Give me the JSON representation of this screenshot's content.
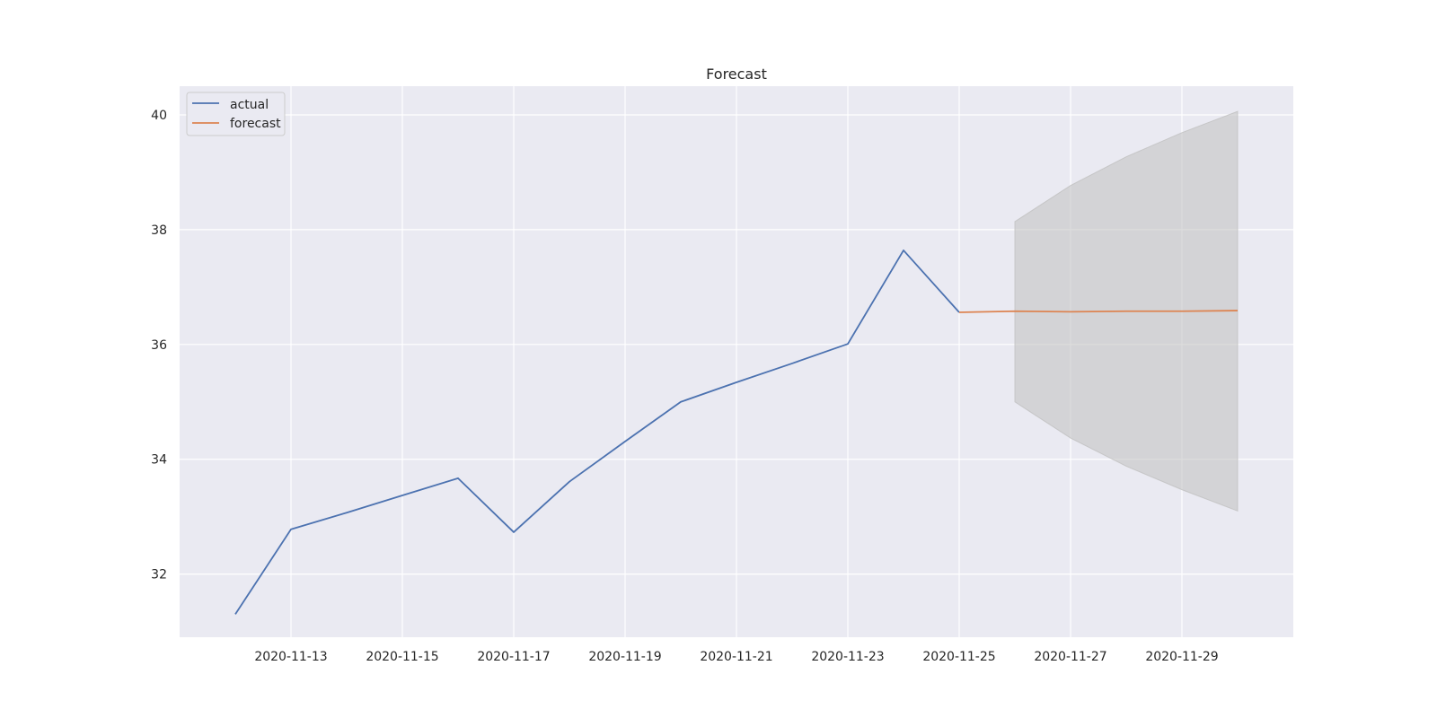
{
  "chart_data": {
    "type": "line",
    "title": "Forecast",
    "xlabel": "",
    "ylabel": "",
    "x_type": "date",
    "xlim": [
      "2020-11-11",
      "2020-12-01"
    ],
    "ylim": [
      30.9,
      40.5
    ],
    "x_ticks": [
      "2020-11-13",
      "2020-11-15",
      "2020-11-17",
      "2020-11-19",
      "2020-11-21",
      "2020-11-23",
      "2020-11-25",
      "2020-11-27",
      "2020-11-29"
    ],
    "y_ticks": [
      "32",
      "34",
      "36",
      "38",
      "40"
    ],
    "grid": true,
    "legend_position": "top-left",
    "series": [
      {
        "name": "actual",
        "color": "#4c72b0",
        "points": [
          {
            "x": "2020-11-12",
            "y": 31.3
          },
          {
            "x": "2020-11-13",
            "y": 32.78
          },
          {
            "x": "2020-11-14",
            "y": 33.07
          },
          {
            "x": "2020-11-15",
            "y": 33.37
          },
          {
            "x": "2020-11-16",
            "y": 33.67
          },
          {
            "x": "2020-11-17",
            "y": 32.73
          },
          {
            "x": "2020-11-18",
            "y": 33.61
          },
          {
            "x": "2020-11-19",
            "y": 34.31
          },
          {
            "x": "2020-11-20",
            "y": 35.0
          },
          {
            "x": "2020-11-21",
            "y": 35.34
          },
          {
            "x": "2020-11-22",
            "y": 35.67
          },
          {
            "x": "2020-11-23",
            "y": 36.01
          },
          {
            "x": "2020-11-24",
            "y": 37.64
          },
          {
            "x": "2020-11-25",
            "y": 36.56
          }
        ]
      },
      {
        "name": "forecast",
        "color": "#dd8452",
        "points": [
          {
            "x": "2020-11-25",
            "y": 36.56
          },
          {
            "x": "2020-11-26",
            "y": 36.58
          },
          {
            "x": "2020-11-27",
            "y": 36.57
          },
          {
            "x": "2020-11-28",
            "y": 36.58
          },
          {
            "x": "2020-11-29",
            "y": 36.58
          },
          {
            "x": "2020-11-30",
            "y": 36.59
          }
        ]
      }
    ],
    "confidence_band": {
      "color": "#c0c0c0",
      "points": [
        {
          "x": "2020-11-26",
          "lower": 35.0,
          "upper": 38.14
        },
        {
          "x": "2020-11-27",
          "lower": 34.37,
          "upper": 38.77
        },
        {
          "x": "2020-11-28",
          "lower": 33.88,
          "upper": 39.27
        },
        {
          "x": "2020-11-29",
          "lower": 33.47,
          "upper": 39.69
        },
        {
          "x": "2020-11-30",
          "lower": 33.1,
          "upper": 40.06
        }
      ]
    }
  }
}
